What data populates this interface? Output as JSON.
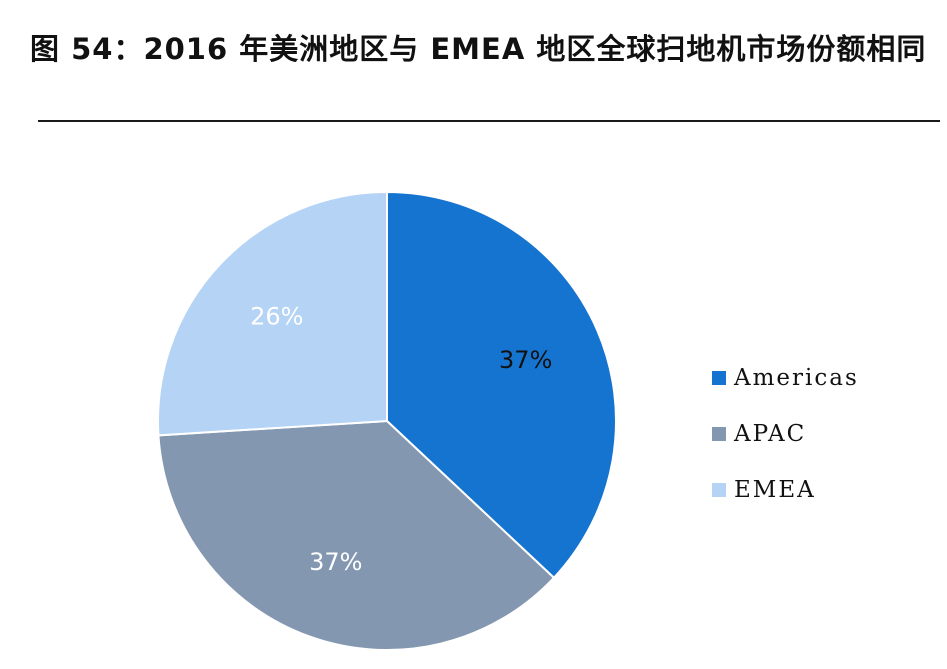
{
  "title": "图 54：2016 年美洲地区与 EMEA 地区全球扫地机市场份额相同",
  "chart_data": {
    "type": "pie",
    "title": "",
    "slices": [
      {
        "label": "Americas",
        "value": 37,
        "display": "37%",
        "color": "#1674d1",
        "label_color": "#111111"
      },
      {
        "label": "APAC",
        "value": 37,
        "display": "37%",
        "color": "#8497b0",
        "label_color": "#ffffff"
      },
      {
        "label": "EMEA",
        "value": 26,
        "display": "26%",
        "color": "#b4d3f5",
        "label_color": "#ffffff"
      }
    ],
    "start_angle_deg": 0,
    "direction": "clockwise",
    "legend_position": "right"
  }
}
